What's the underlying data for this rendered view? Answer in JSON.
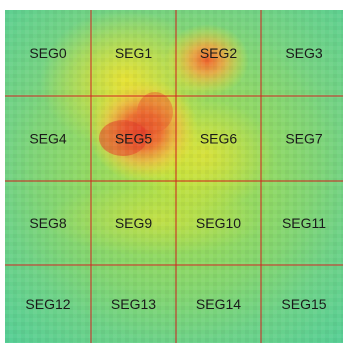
{
  "segment_grid": {
    "rows": 4,
    "cols": 4,
    "segments": [
      "SEG0",
      "SEG1",
      "SEG2",
      "SEG3",
      "SEG4",
      "SEG5",
      "SEG6",
      "SEG7",
      "SEG8",
      "SEG9",
      "SEG10",
      "SEG11",
      "SEG12",
      "SEG13",
      "SEG14",
      "SEG15"
    ],
    "grid_line_color": "#d2221f"
  },
  "chart_data": {
    "type": "heatmap",
    "title": "",
    "colormap": [
      "#4ec8d6",
      "#5ad16a",
      "#a8de3a",
      "#f0e227",
      "#f2b93a",
      "#ee6a2a",
      "#e23b22"
    ],
    "notes": "",
    "hotspots": [
      {
        "segment": "SEG5",
        "intensity": 1.0
      },
      {
        "segment": "SEG2",
        "intensity": 0.85
      },
      {
        "segment": "SEG1",
        "intensity": 0.55
      },
      {
        "segment": "SEG6",
        "intensity": 0.45
      }
    ]
  }
}
